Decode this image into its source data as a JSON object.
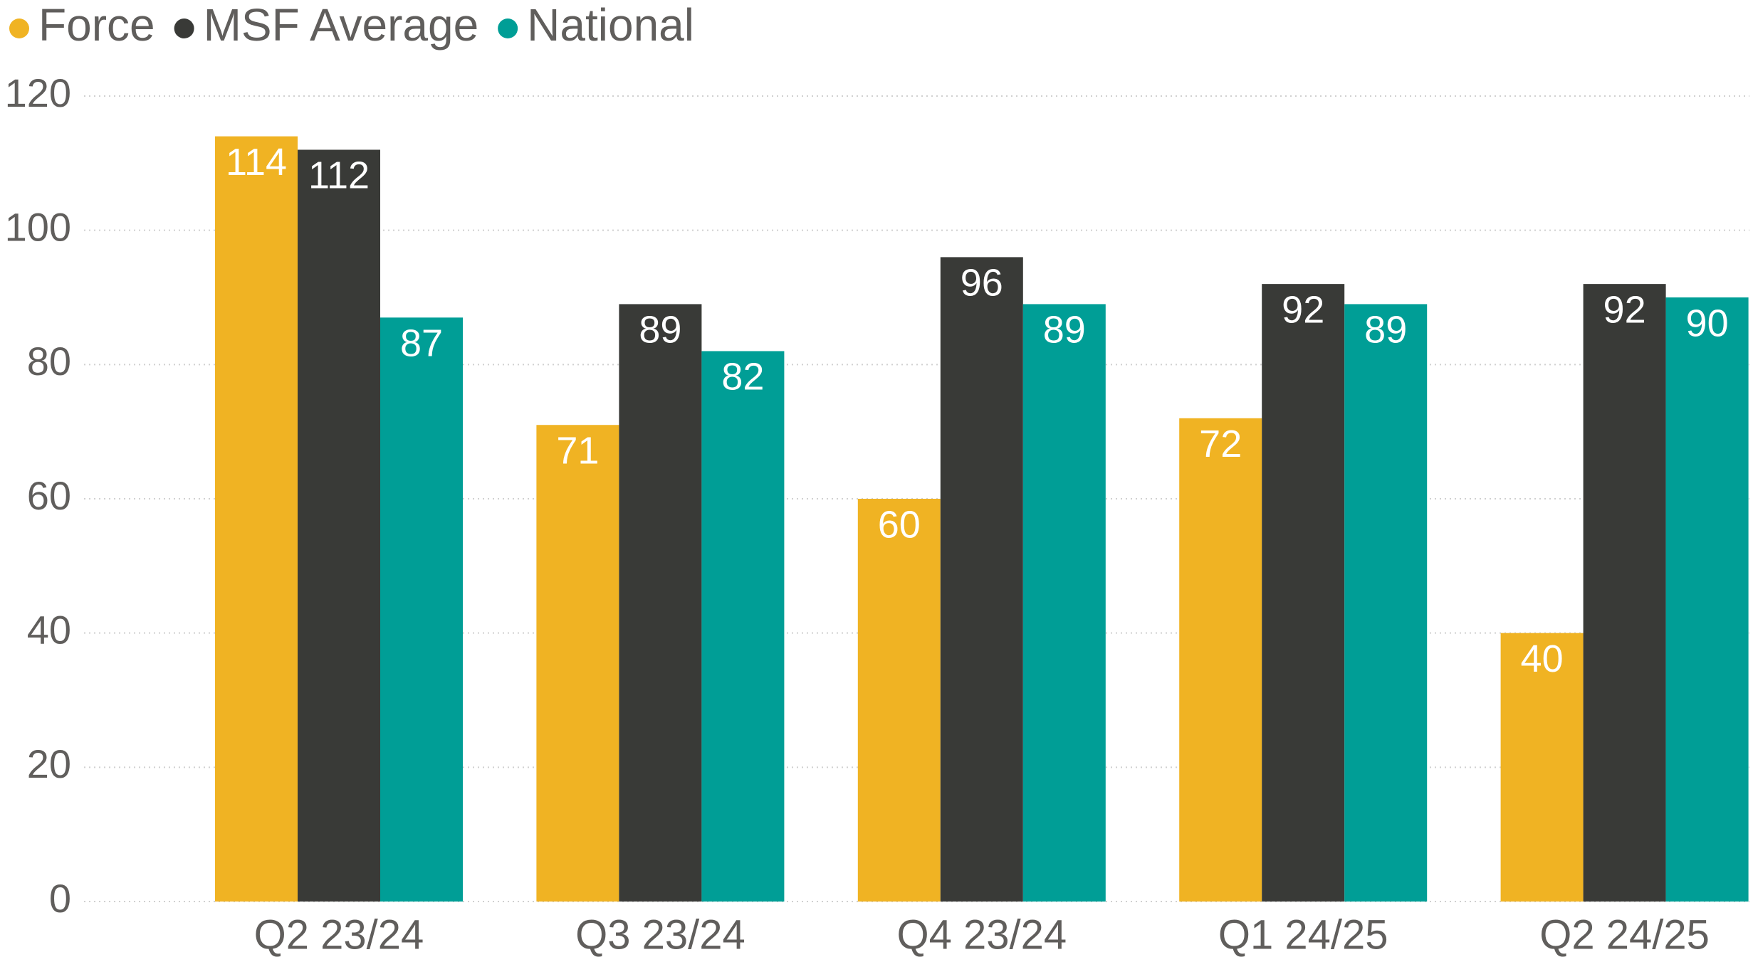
{
  "chart_data": {
    "type": "bar",
    "categories": [
      "Q2 23/24",
      "Q3 23/24",
      "Q4 23/24",
      "Q1 24/25",
      "Q2 24/25"
    ],
    "series": [
      {
        "name": "Force",
        "color": "#f0b323",
        "values": [
          114,
          71,
          60,
          72,
          40
        ]
      },
      {
        "name": "MSF Average",
        "color": "#393a37",
        "values": [
          112,
          89,
          96,
          92,
          92
        ]
      },
      {
        "name": "National",
        "color": "#009e96",
        "values": [
          87,
          82,
          89,
          89,
          90
        ]
      }
    ],
    "ylim": [
      0,
      120
    ],
    "yticks": [
      0,
      20,
      40,
      60,
      80,
      100,
      120
    ],
    "grid": true,
    "legend": "top-left"
  }
}
